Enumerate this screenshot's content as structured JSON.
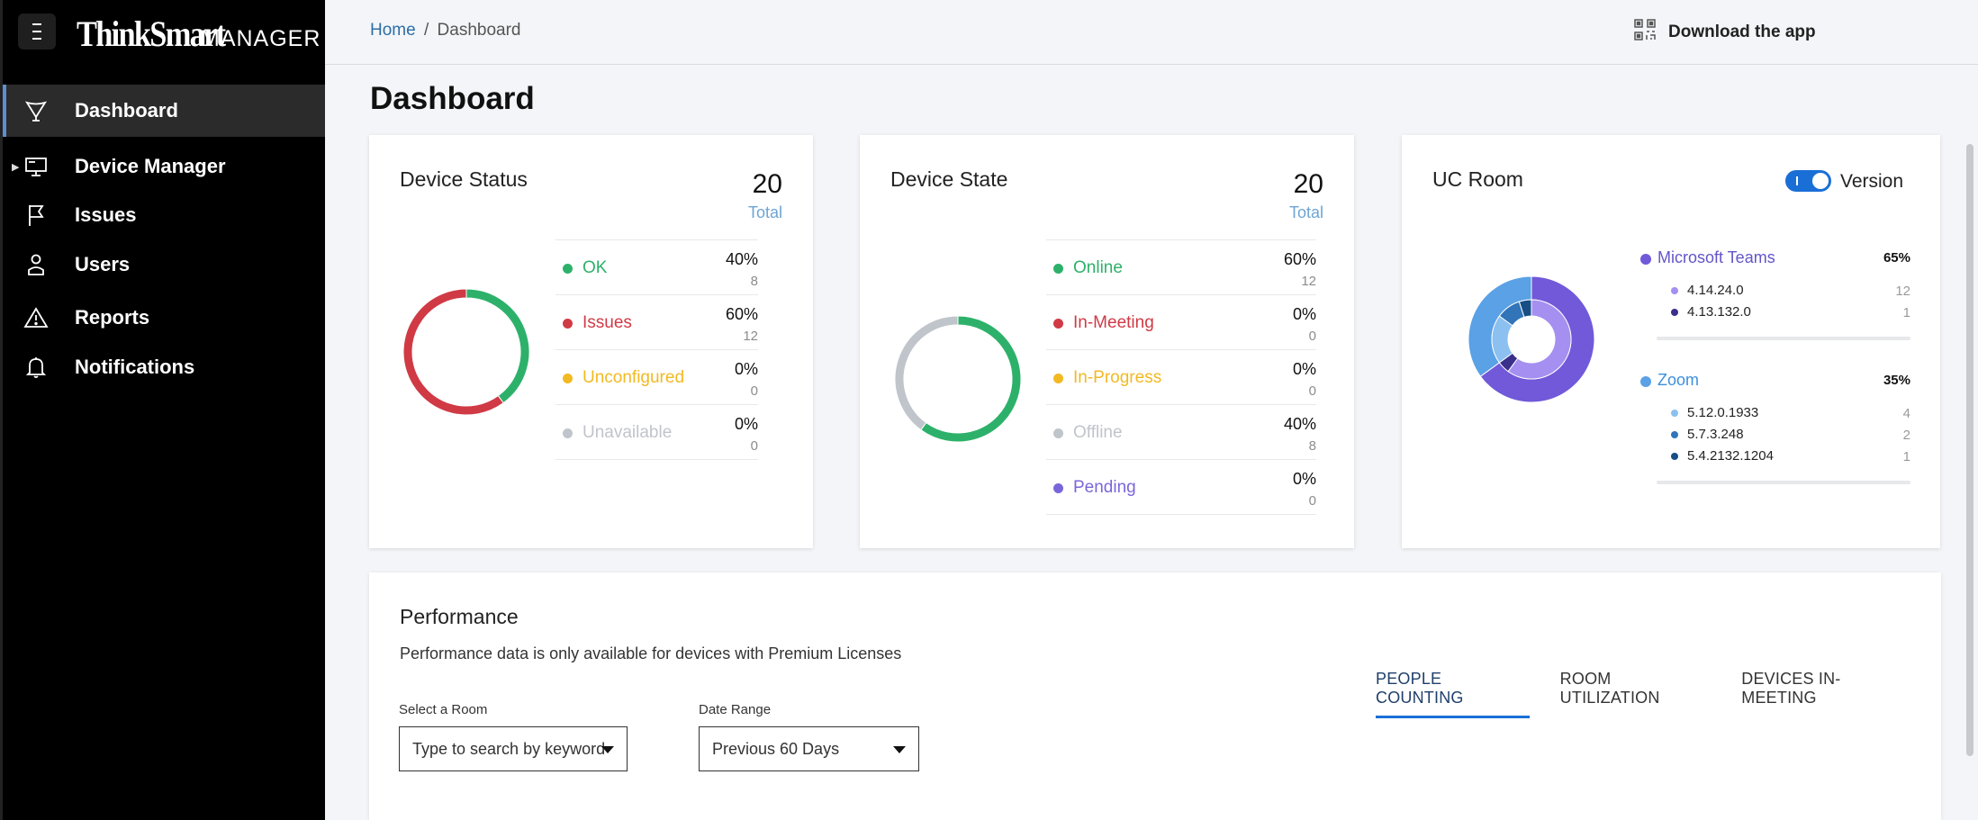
{
  "app": {
    "brand": "ThinkSmart",
    "product": "MANAGER"
  },
  "nav": [
    {
      "label": "Dashboard",
      "icon": "trophy-icon",
      "active": true
    },
    {
      "label": "Device Manager",
      "icon": "monitor-icon"
    },
    {
      "label": "Issues",
      "icon": "flag-icon"
    },
    {
      "label": "Users",
      "icon": "user-icon"
    },
    {
      "label": "Reports",
      "icon": "warning-icon"
    },
    {
      "label": "Notifications",
      "icon": "bell-icon"
    }
  ],
  "breadcrumb": {
    "home": "Home",
    "sep": "/",
    "current": "Dashboard"
  },
  "download": {
    "label": "Download the app",
    "icon": "qr-code-icon"
  },
  "page_title": "Dashboard",
  "device_status": {
    "title": "Device Status",
    "total": "20",
    "total_label": "Total",
    "items": [
      {
        "label": "OK",
        "pct": "40%",
        "count": "8",
        "color": "#2db16a",
        "value": 8
      },
      {
        "label": "Issues",
        "pct": "60%",
        "count": "12",
        "color": "#d03a45",
        "value": 12
      },
      {
        "label": "Unconfigured",
        "pct": "0%",
        "count": "0",
        "color": "#f2b922",
        "value": 0
      },
      {
        "label": "Unavailable",
        "pct": "0%",
        "count": "0",
        "color": "#c0c4cb",
        "value": 0
      }
    ]
  },
  "device_state": {
    "title": "Device State",
    "total": "20",
    "total_label": "Total",
    "items": [
      {
        "label": "Online",
        "pct": "60%",
        "count": "12",
        "color": "#2db16a",
        "value": 12
      },
      {
        "label": "In-Meeting",
        "pct": "0%",
        "count": "0",
        "color": "#d03a45",
        "value": 0
      },
      {
        "label": "In-Progress",
        "pct": "0%",
        "count": "0",
        "color": "#f2b922",
        "value": 0
      },
      {
        "label": "Offline",
        "pct": "40%",
        "count": "8",
        "color": "#c0c4cb",
        "value": 8
      },
      {
        "label": "Pending",
        "pct": "0%",
        "count": "0",
        "color": "#7b66d9",
        "value": 0
      }
    ]
  },
  "uc_room": {
    "title": "UC Room",
    "toggle_label": "Version",
    "groups": [
      {
        "label": "Microsoft Teams",
        "pct": "65%",
        "color": "#7159d9",
        "label_color": "#6355c7",
        "value": 13,
        "versions": [
          {
            "label": "4.14.24.0",
            "count": "12",
            "color": "#a58ff0",
            "value": 12
          },
          {
            "label": "4.13.132.0",
            "count": "1",
            "color": "#3a2f8a",
            "value": 1
          }
        ]
      },
      {
        "label": "Zoom",
        "pct": "35%",
        "color": "#5aa1e6",
        "label_color": "#3d8fdc",
        "value": 7,
        "versions": [
          {
            "label": "5.12.0.1933",
            "count": "4",
            "color": "#8cc0f0",
            "value": 4
          },
          {
            "label": "5.7.3.248",
            "count": "2",
            "color": "#3175b8",
            "value": 2
          },
          {
            "label": "5.4.2132.1204",
            "count": "1",
            "color": "#174e86",
            "value": 1
          }
        ]
      }
    ]
  },
  "performance": {
    "title": "Performance",
    "description": "Performance data is only available for devices with Premium Licenses",
    "tabs": [
      "PEOPLE COUNTING",
      "ROOM UTILIZATION",
      "DEVICES IN-MEETING"
    ],
    "active_tab": 0,
    "room_label": "Select a Room",
    "room_placeholder": "Type to search by keyword",
    "date_label": "Date Range",
    "date_value": "Previous 60 Days"
  }
}
